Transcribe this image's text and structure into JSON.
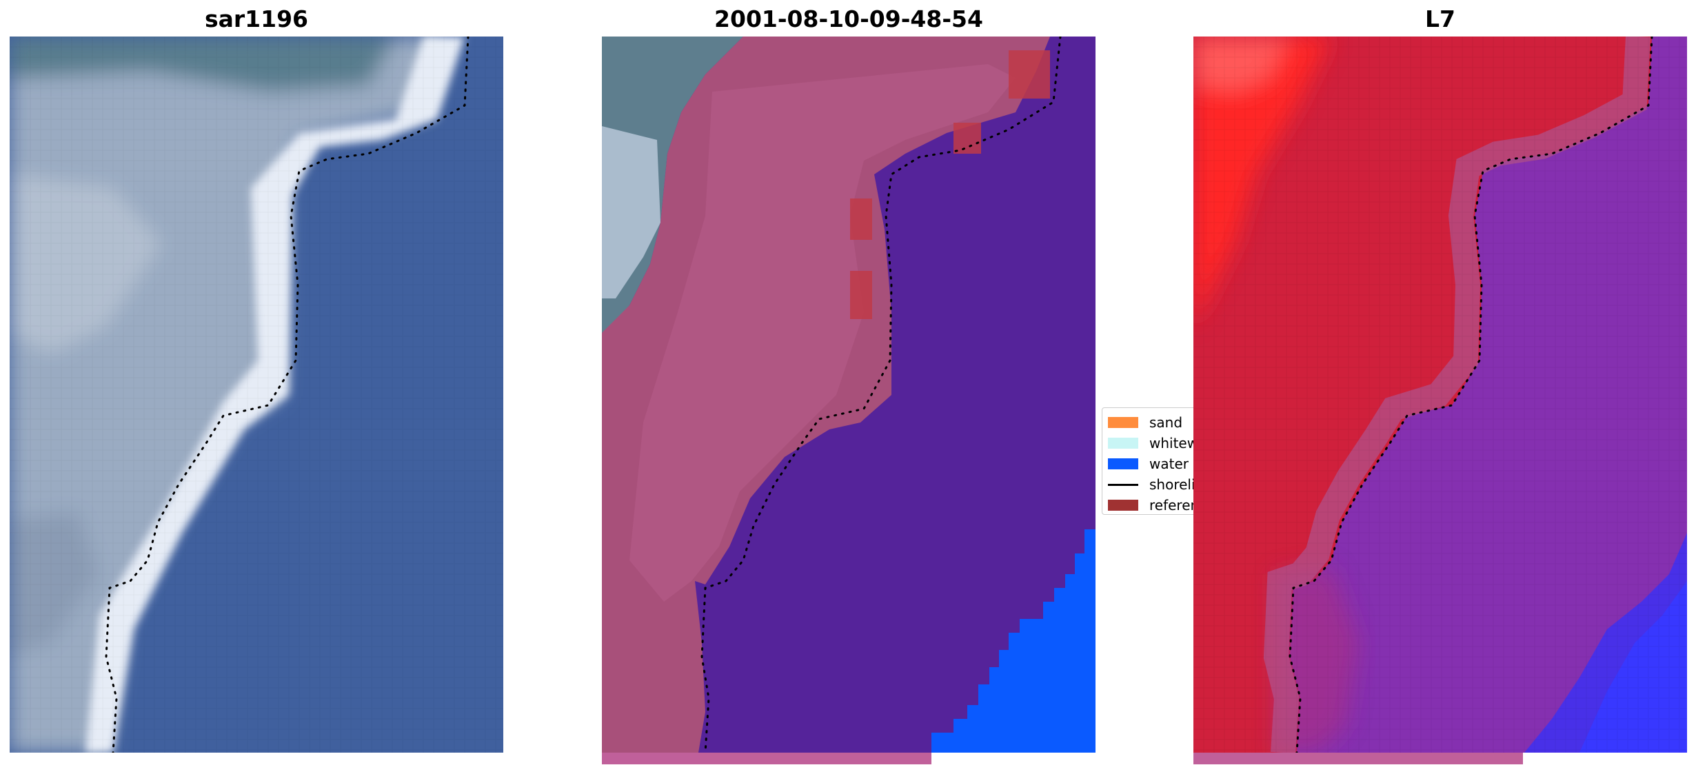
{
  "figure": {
    "titles": [
      "sar1196",
      "2001-08-10-09-48-54",
      "L7"
    ]
  },
  "legend": {
    "items": [
      {
        "label": "sand",
        "color": "#ff8c3c",
        "kind": "patch"
      },
      {
        "label": "whitewater",
        "color": "#c8f5f5",
        "kind": "patch"
      },
      {
        "label": "water",
        "color": "#0a5aff",
        "kind": "patch"
      },
      {
        "label": "shoreline",
        "color": "#000000",
        "kind": "line"
      },
      {
        "label": "reference",
        "color": "#a03232",
        "kind": "patch"
      }
    ]
  },
  "colors": {
    "sand_overlay": "#a8507a",
    "water_overlay": "#55239a",
    "water_open": "#0a5aff",
    "reference_patch": "#c03a48",
    "sky_gray": "#5e7e8e",
    "whitewater": "#dbe3f0",
    "l7_land": "#d0203c",
    "l7_land_bright": "#ff2020",
    "l7_water": "#8530b0",
    "l7_water_deep": "#3838ff"
  }
}
